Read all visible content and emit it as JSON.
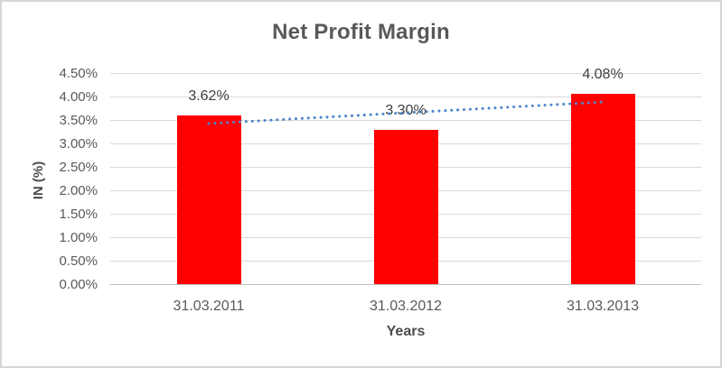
{
  "chart_data": {
    "type": "bar",
    "title": "Net Profit Margin",
    "xlabel": "Years",
    "ylabel": "IN (%)",
    "categories": [
      "31.03.2011",
      "31.03.2012",
      "31.03.2013"
    ],
    "series": [
      {
        "name": "Net Profit Margin",
        "values": [
          3.62,
          3.3,
          4.08
        ]
      }
    ],
    "data_labels": [
      "3.62%",
      "3.30%",
      "4.08%"
    ],
    "ylim": [
      0,
      4.5
    ],
    "ytick_step": 0.5,
    "ytick_labels": [
      "0.00%",
      "0.50%",
      "1.00%",
      "1.50%",
      "2.00%",
      "2.50%",
      "3.00%",
      "3.50%",
      "4.00%",
      "4.50%"
    ],
    "grid": true,
    "legend_position": "none",
    "trendline": {
      "type": "linear",
      "style": "dotted",
      "start_value": 3.44,
      "end_value": 3.9
    },
    "colors": {
      "bar": "#ff0000",
      "trendline": "#4e87c8",
      "title_text": "#595959",
      "tick_text": "#595959",
      "data_label_text": "#404040",
      "axis_title_text": "#4d4d4d",
      "gridline": "#d9d9d9",
      "frame_border": "#d6d6d6",
      "background": "#ffffff"
    }
  }
}
